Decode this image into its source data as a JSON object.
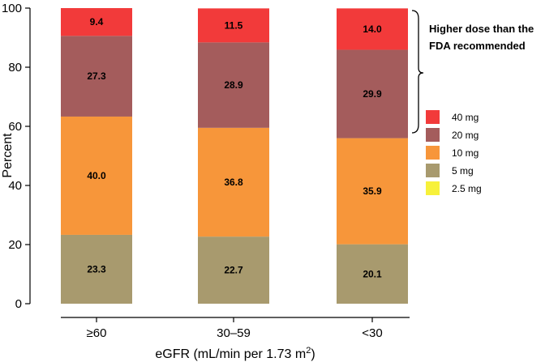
{
  "chart_data": {
    "type": "bar",
    "stacked": true,
    "categories": [
      "≥60",
      "30–59",
      "<30"
    ],
    "series": [
      {
        "name": "2.5 mg",
        "color": "#f7f13a",
        "values": [
          0,
          0,
          0
        ],
        "labels": [
          "",
          "",
          ""
        ]
      },
      {
        "name": "5 mg",
        "color": "#a89a6e",
        "values": [
          23.3,
          22.7,
          20.1
        ],
        "labels": [
          "23.3",
          "22.7",
          "20.1"
        ]
      },
      {
        "name": "10 mg",
        "color": "#f7963a",
        "values": [
          40.0,
          36.8,
          35.9
        ],
        "labels": [
          "40.0",
          "36.8",
          "35.9"
        ]
      },
      {
        "name": "20 mg",
        "color": "#a45c5c",
        "values": [
          27.3,
          28.9,
          29.9
        ],
        "labels": [
          "27.3",
          "28.9",
          "29.9"
        ]
      },
      {
        "name": "40 mg",
        "color": "#f23a3a",
        "values": [
          9.4,
          11.5,
          14.0
        ],
        "labels": [
          "9.4",
          "11.5",
          "14.0"
        ]
      }
    ],
    "legend_order": [
      "40 mg",
      "20 mg",
      "10 mg",
      "5 mg",
      "2.5 mg"
    ],
    "ylabel": "Percent",
    "xlabel_main": "eGFR (mL/min per 1.73 m",
    "xlabel_sup": "2",
    "xlabel_close": ")",
    "ylim": [
      0,
      100
    ],
    "yticks": [
      "0",
      "20",
      "40",
      "60",
      "80",
      "100"
    ],
    "annotation_line1": "Higher dose than the",
    "annotation_line2": "FDA recommended",
    "legend_position": "right"
  }
}
